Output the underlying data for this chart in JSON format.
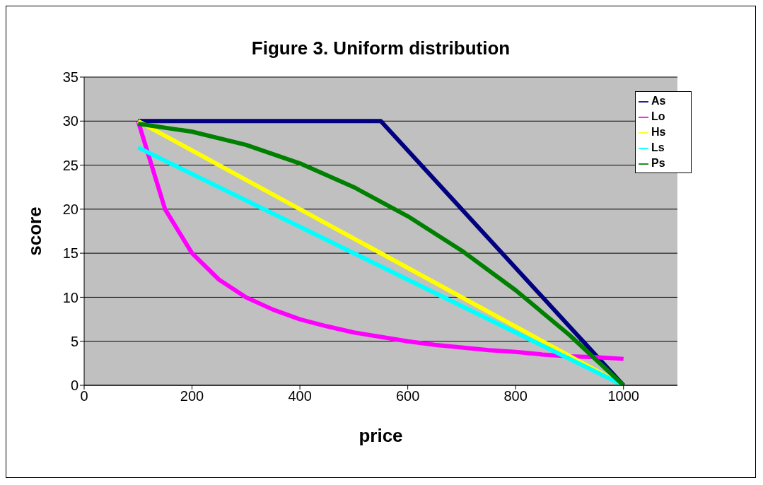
{
  "chart_data": {
    "type": "line",
    "title": "Figure 3. Uniform distribution",
    "xlabel": "price",
    "ylabel": "score",
    "xlim": [
      0,
      1100
    ],
    "xticks": [
      0,
      200,
      400,
      600,
      800,
      1000
    ],
    "ylim": [
      0,
      35
    ],
    "yticks": [
      0,
      5,
      10,
      15,
      20,
      25,
      30,
      35
    ],
    "grid": "y",
    "legend": "top right",
    "marker": "none",
    "line_style": "solid",
    "series": [
      {
        "name": "As",
        "color": "#000080",
        "x": [
          100,
          550,
          1000
        ],
        "values": [
          30,
          30,
          0
        ]
      },
      {
        "name": "Lo",
        "color": "#ff00ff",
        "x": [
          100,
          150,
          200,
          250,
          300,
          350,
          400,
          450,
          500,
          550,
          600,
          650,
          700,
          750,
          800,
          850,
          900,
          950,
          1000
        ],
        "values": [
          30,
          20,
          15,
          12,
          10,
          8.6,
          7.5,
          6.7,
          6,
          5.5,
          5,
          4.6,
          4.3,
          4,
          3.8,
          3.5,
          3.3,
          3.2,
          3
        ]
      },
      {
        "name": "Hs",
        "color": "#ffff00",
        "x": [
          100,
          1000
        ],
        "values": [
          30,
          0
        ]
      },
      {
        "name": "Ls",
        "color": "#00ffff",
        "x": [
          100,
          1000
        ],
        "values": [
          27,
          0
        ]
      },
      {
        "name": "Ps",
        "color": "#008000",
        "x": [
          100,
          200,
          300,
          400,
          500,
          600,
          700,
          800,
          900,
          1000
        ],
        "values": [
          29.7,
          28.8,
          27.3,
          25.2,
          22.5,
          19.2,
          15.3,
          10.8,
          5.7,
          0
        ]
      }
    ]
  }
}
